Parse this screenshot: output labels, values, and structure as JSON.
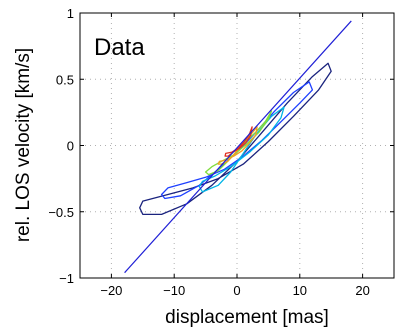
{
  "chart_data": {
    "type": "line",
    "annotation": "Data",
    "xlabel": "displacement [mas]",
    "ylabel": "rel. LOS velocity [km/s]",
    "xlim": [
      -25,
      25
    ],
    "ylim": [
      -1,
      1
    ],
    "xticks": [
      -20,
      -10,
      0,
      10,
      20
    ],
    "yticks": [
      -1,
      -0.5,
      0,
      0.5,
      1
    ],
    "xtick_labels": [
      "−20",
      "−10",
      "0",
      "10",
      "20"
    ],
    "ytick_labels": [
      "−1",
      "−0.5",
      "0",
      "0.5",
      "1"
    ],
    "grid": true,
    "fit_line": {
      "color": "#1f1fd6",
      "x": [
        -17.9,
        18.2
      ],
      "y": [
        -0.96,
        0.94
      ]
    },
    "contours": [
      {
        "level": 1,
        "color": "#1a237e",
        "x": [
          -15,
          -12,
          -8,
          -4,
          0,
          4,
          8,
          12,
          14.5,
          15,
          13,
          9,
          5,
          1,
          -3,
          -7,
          -11,
          -15,
          -15.5,
          -15
        ],
        "y": [
          -0.52,
          -0.52,
          -0.44,
          -0.3,
          -0.12,
          0.1,
          0.32,
          0.52,
          0.62,
          0.56,
          0.42,
          0.22,
          0.03,
          -0.14,
          -0.25,
          -0.32,
          -0.37,
          -0.42,
          -0.47,
          -0.52
        ]
      },
      {
        "level": 2,
        "color": "#1e40ff",
        "x": [
          -11.5,
          -9,
          -6,
          -3,
          0,
          3,
          6,
          9,
          11.5,
          12,
          10,
          7,
          4,
          1,
          -2,
          -5,
          -8,
          -11,
          -12,
          -11.5
        ],
        "y": [
          -0.4,
          -0.38,
          -0.3,
          -0.18,
          -0.05,
          0.1,
          0.26,
          0.4,
          0.48,
          0.42,
          0.32,
          0.18,
          0.04,
          -0.08,
          -0.18,
          -0.24,
          -0.28,
          -0.32,
          -0.37,
          -0.4
        ]
      },
      {
        "level": 3,
        "color": "#00b4e6",
        "x": [
          -5.5,
          -3,
          -1,
          1,
          3,
          5.5,
          7.5,
          7,
          5,
          2,
          -1,
          -3.5,
          -5.5,
          -6,
          -5.5
        ],
        "y": [
          -0.35,
          -0.3,
          -0.2,
          -0.06,
          0.08,
          0.22,
          0.29,
          0.21,
          0.08,
          -0.05,
          -0.16,
          -0.23,
          -0.27,
          -0.31,
          -0.35
        ]
      },
      {
        "level": 4,
        "color": "#7fdc3c",
        "x": [
          -4.5,
          -3,
          -1.5,
          0,
          1.5,
          3,
          4.5,
          5.5,
          5,
          3.5,
          1.5,
          -0.5,
          -2.5,
          -4,
          -5,
          -4.5
        ],
        "y": [
          -0.22,
          -0.19,
          -0.12,
          -0.04,
          0.04,
          0.1,
          0.18,
          0.26,
          0.2,
          0.1,
          0.01,
          -0.07,
          -0.12,
          -0.16,
          -0.2,
          -0.22
        ]
      },
      {
        "level": 5,
        "color": "#f0a020",
        "x": [
          -2.5,
          -1.5,
          -0.5,
          0.5,
          1.5,
          2.5,
          3.2,
          3,
          2,
          0.8,
          -0.5,
          -1.8,
          -2.8,
          -3,
          -2.5
        ],
        "y": [
          -0.14,
          -0.12,
          -0.07,
          -0.01,
          0.05,
          0.1,
          0.14,
          0.08,
          0.02,
          -0.04,
          -0.08,
          -0.11,
          -0.12,
          -0.14,
          -0.14
        ]
      },
      {
        "level": 6,
        "color": "#e03020",
        "x": [
          -1.8,
          -0.8,
          0.2,
          1.2,
          2,
          2.4,
          2.2,
          1.4,
          0.4,
          -0.6,
          -1.4,
          -1.9,
          -1.8
        ],
        "y": [
          -0.06,
          -0.05,
          -0.02,
          0.03,
          0.09,
          0.14,
          0.08,
          0.02,
          -0.02,
          -0.05,
          -0.08,
          -0.08,
          -0.06
        ]
      }
    ]
  }
}
